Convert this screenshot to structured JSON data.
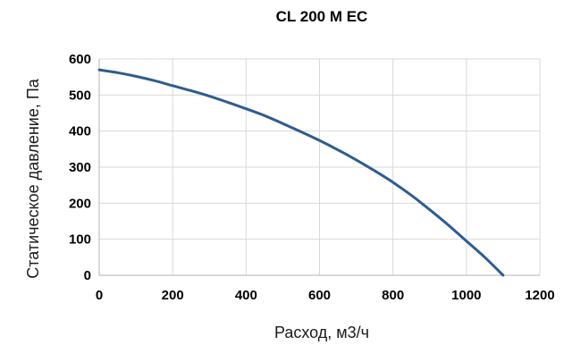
{
  "chart_data": {
    "type": "line",
    "title": "CL 200 M EC",
    "xlabel": "Расход, м3/ч",
    "ylabel": "Статическое давление, Па",
    "xlim": [
      0,
      1200
    ],
    "ylim": [
      0,
      600
    ],
    "grid": true,
    "legend": "none",
    "x_ticks": [
      "0",
      "200",
      "400",
      "600",
      "800",
      "1000",
      "1200"
    ],
    "y_ticks": [
      "0",
      "100",
      "200",
      "300",
      "400",
      "500",
      "600"
    ],
    "series": [
      {
        "color": "#2e5c8f",
        "x": [
          0,
          50,
          100,
          150,
          200,
          250,
          300,
          350,
          400,
          450,
          500,
          550,
          600,
          650,
          700,
          750,
          800,
          850,
          900,
          950,
          1000,
          1050,
          1100
        ],
        "y": [
          570,
          562,
          552,
          540,
          526,
          512,
          497,
          480,
          462,
          443,
          421,
          398,
          374,
          348,
          320,
          290,
          258,
          222,
          182,
          140,
          95,
          50,
          0
        ]
      }
    ]
  }
}
